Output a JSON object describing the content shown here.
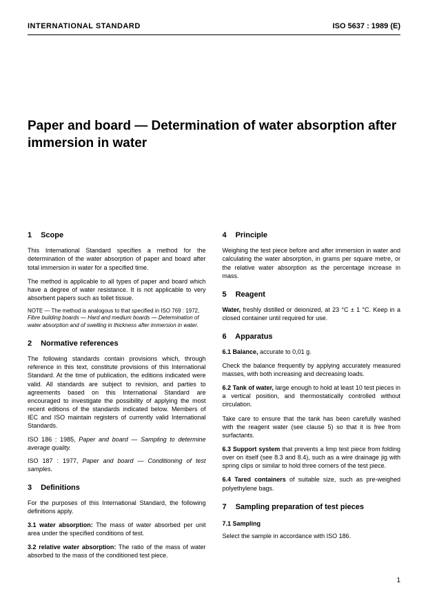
{
  "header": {
    "left": "INTERNATIONAL STANDARD",
    "right": "ISO 5637 : 1989 (E)"
  },
  "title": "Paper and board — Determination of water absorption after immersion in water",
  "left_column": {
    "s1": {
      "num": "1",
      "title": "Scope",
      "p1": "This International Standard specifies a method for the determination of the water absorption of paper and board after total immersion in water for a specified time.",
      "p2": "The method is applicable to all types of paper and board which have a degree of water resistance. It is not applicable to very absorbent papers such as toilet tissue.",
      "note_label": "NOTE —",
      "note_text": "The method is analogous to that specified in ISO 769 : 1972,",
      "note_italic": "Fibre building boards — Hard and medium boards — Determination of water absorption and of swelling in thickness after immersion in water."
    },
    "s2": {
      "num": "2",
      "title": "Normative references",
      "p1": "The following standards contain provisions which, through reference in this text, constitute provisions of this International Standard. At the time of publication, the editions indicated were valid. All standards are subject to revision, and parties to agreements based on this International Standard are encouraged to investigate the possibility of applying the most recent editions of the standards indicated below. Members of IEC and ISO maintain registers of currently valid International Standards.",
      "ref1_a": "ISO 186 : 1985,",
      "ref1_b": "Paper and board — Sampling to determine average quality.",
      "ref2_a": "ISO 187 : 1977,",
      "ref2_b": "Paper and board — Conditioning of test samples."
    },
    "s3": {
      "num": "3",
      "title": "Definitions",
      "p1": "For the purposes of this International Standard, the following definitions apply.",
      "d1_num": "3.1",
      "d1_term": "water absorption:",
      "d1_text": "The mass of water absorbed per unit area under the specified conditions of test.",
      "d2_num": "3.2",
      "d2_term": "relative water absorption:",
      "d2_text": "The ratio of the mass of water absorbed to the mass of the conditioned test piece."
    }
  },
  "right_column": {
    "s4": {
      "num": "4",
      "title": "Principle",
      "p1": "Weighing the test piece before and after immersion in water and calculating the water absorption, in grams per square metre, or the relative water absorption as the percentage increase in mass."
    },
    "s5": {
      "num": "5",
      "title": "Reagent",
      "p1_a": "Water,",
      "p1_b": "freshly distilled or deionized, at 23 °C ± 1 °C. Keep in a closed container until required for use."
    },
    "s6": {
      "num": "6",
      "title": "Apparatus",
      "a1_num": "6.1",
      "a1_term": "Balance,",
      "a1_text": "accurate to 0,01 g.",
      "a1_p2": "Check the balance frequently by applying accurately measured masses, with both increasing and decreasing loads.",
      "a2_num": "6.2",
      "a2_term": "Tank of water,",
      "a2_text": "large enough to hold at least 10 test pieces in a vertical position, and thermostatically controlled without circulation.",
      "a2_p2": "Take care to ensure that the tank has been carefully washed with the reagent water (see clause 5) so that it is free from surfactants.",
      "a3_num": "6.3",
      "a3_term": "Support system",
      "a3_text": "that prevents a limp test piece from folding over on itself (see 8.3 and 8.4), such as a wire drainage jig with spring clips or similar to hold three corners of the test piece.",
      "a4_num": "6.4",
      "a4_term": "Tared containers",
      "a4_text": "of suitable size, such as pre-weighed polyethylene bags."
    },
    "s7": {
      "num": "7",
      "title": "Sampling preparation of test pieces",
      "sub_num": "7.1",
      "sub_title": "Sampling",
      "p1": "Select the sample in accordance with ISO 186."
    }
  },
  "page_number": "1"
}
